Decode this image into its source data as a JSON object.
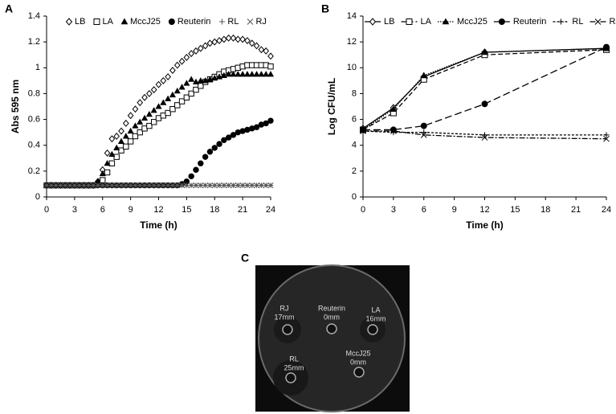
{
  "chart_data": [
    {
      "type": "scatter",
      "panel": "A",
      "x_label": "Time (h)",
      "y_label": "Abs 595 nm",
      "x": [
        0,
        0.5,
        1,
        1.5,
        2,
        2.5,
        3,
        3.5,
        4,
        4.5,
        5,
        5.5,
        6,
        6.5,
        7,
        7.5,
        8,
        8.5,
        9,
        9.5,
        10,
        10.5,
        11,
        11.5,
        12,
        12.5,
        13,
        13.5,
        14,
        14.5,
        15,
        15.5,
        16,
        16.5,
        17,
        17.5,
        18,
        18.5,
        19,
        19.5,
        20,
        20.5,
        21,
        21.5,
        22,
        22.5,
        23,
        23.5,
        24
      ],
      "xlim": [
        0,
        24
      ],
      "xticks": [
        0,
        3,
        6,
        9,
        12,
        15,
        18,
        21,
        24
      ],
      "ylim": [
        0,
        1.4
      ],
      "yticks": [
        0,
        0.2,
        0.4,
        0.6,
        0.8,
        1,
        1.2,
        1.4
      ],
      "series": [
        {
          "name": "LB",
          "marker": "diamond-open",
          "color": "#000",
          "values": [
            0.09,
            0.09,
            0.09,
            0.09,
            0.09,
            0.09,
            0.09,
            0.09,
            0.09,
            0.09,
            0.09,
            0.12,
            0.21,
            0.34,
            0.45,
            0.47,
            0.51,
            0.57,
            0.63,
            0.68,
            0.73,
            0.77,
            0.8,
            0.83,
            0.87,
            0.9,
            0.93,
            0.98,
            1.02,
            1.05,
            1.08,
            1.11,
            1.13,
            1.15,
            1.17,
            1.19,
            1.2,
            1.21,
            1.22,
            1.23,
            1.23,
            1.22,
            1.22,
            1.21,
            1.19,
            1.17,
            1.14,
            1.13,
            1.09
          ]
        },
        {
          "name": "LA",
          "marker": "square-open",
          "color": "#000",
          "values": [
            0.09,
            0.09,
            0.09,
            0.09,
            0.09,
            0.09,
            0.09,
            0.09,
            0.09,
            0.09,
            0.09,
            0.1,
            0.13,
            0.19,
            0.26,
            0.31,
            0.36,
            0.39,
            0.43,
            0.47,
            0.5,
            0.53,
            0.55,
            0.58,
            0.61,
            0.63,
            0.65,
            0.68,
            0.71,
            0.74,
            0.77,
            0.8,
            0.83,
            0.86,
            0.89,
            0.91,
            0.93,
            0.95,
            0.97,
            0.98,
            0.99,
            1.0,
            1.01,
            1.02,
            1.02,
            1.02,
            1.02,
            1.02,
            1.01
          ]
        },
        {
          "name": "MccJ25",
          "marker": "triangle",
          "color": "#000",
          "values": [
            0.09,
            0.09,
            0.09,
            0.09,
            0.09,
            0.09,
            0.09,
            0.09,
            0.09,
            0.09,
            0.09,
            0.12,
            0.18,
            0.26,
            0.33,
            0.38,
            0.43,
            0.47,
            0.51,
            0.55,
            0.58,
            0.61,
            0.64,
            0.67,
            0.7,
            0.73,
            0.76,
            0.79,
            0.82,
            0.85,
            0.88,
            0.91,
            0.89,
            0.9,
            0.9,
            0.91,
            0.92,
            0.93,
            0.94,
            0.95,
            0.95,
            0.95,
            0.95,
            0.95,
            0.95,
            0.95,
            0.95,
            0.95,
            0.95
          ]
        },
        {
          "name": "Reuterin",
          "marker": "circle",
          "color": "#000",
          "values": [
            0.09,
            0.09,
            0.09,
            0.09,
            0.09,
            0.09,
            0.09,
            0.09,
            0.09,
            0.09,
            0.09,
            0.09,
            0.09,
            0.09,
            0.09,
            0.09,
            0.09,
            0.09,
            0.09,
            0.09,
            0.09,
            0.09,
            0.09,
            0.09,
            0.09,
            0.09,
            0.09,
            0.09,
            0.09,
            0.1,
            0.12,
            0.16,
            0.21,
            0.26,
            0.31,
            0.35,
            0.38,
            0.41,
            0.44,
            0.46,
            0.48,
            0.5,
            0.51,
            0.52,
            0.53,
            0.54,
            0.56,
            0.57,
            0.59
          ]
        },
        {
          "name": "RL",
          "marker": "plus",
          "color": "#555",
          "values": [
            0.09,
            0.09,
            0.09,
            0.09,
            0.09,
            0.09,
            0.09,
            0.09,
            0.09,
            0.09,
            0.09,
            0.09,
            0.09,
            0.09,
            0.09,
            0.09,
            0.09,
            0.09,
            0.09,
            0.09,
            0.09,
            0.09,
            0.09,
            0.09,
            0.09,
            0.09,
            0.09,
            0.09,
            0.09,
            0.09,
            0.09,
            0.09,
            0.09,
            0.09,
            0.09,
            0.09,
            0.09,
            0.09,
            0.09,
            0.09,
            0.09,
            0.09,
            0.09,
            0.09,
            0.09,
            0.09,
            0.09,
            0.09,
            0.09
          ]
        },
        {
          "name": "RJ",
          "marker": "cross",
          "color": "#555",
          "values": [
            0.09,
            0.09,
            0.09,
            0.09,
            0.09,
            0.09,
            0.09,
            0.09,
            0.09,
            0.09,
            0.09,
            0.09,
            0.09,
            0.09,
            0.09,
            0.09,
            0.09,
            0.09,
            0.09,
            0.09,
            0.09,
            0.09,
            0.09,
            0.09,
            0.09,
            0.09,
            0.09,
            0.09,
            0.09,
            0.09,
            0.09,
            0.09,
            0.09,
            0.09,
            0.09,
            0.09,
            0.09,
            0.09,
            0.09,
            0.09,
            0.09,
            0.09,
            0.09,
            0.09,
            0.09,
            0.09,
            0.09,
            0.09,
            0.09
          ]
        }
      ]
    },
    {
      "type": "line",
      "panel": "B",
      "x_label": "Time (h)",
      "y_label": "Log CFU/mL",
      "x": [
        0,
        3,
        6,
        12,
        24
      ],
      "xlim": [
        0,
        24
      ],
      "xticks": [
        0,
        3,
        6,
        9,
        12,
        15,
        18,
        21,
        24
      ],
      "ylim": [
        0,
        14
      ],
      "yticks": [
        0,
        2,
        4,
        6,
        8,
        10,
        12,
        14
      ],
      "series": [
        {
          "name": "LB",
          "marker": "diamond-open",
          "dash": "none",
          "color": "#000",
          "values": [
            5.3,
            6.9,
            9.3,
            11.2,
            11.5
          ]
        },
        {
          "name": "LA",
          "marker": "square-open",
          "dash": "6 3",
          "color": "#000",
          "values": [
            5.2,
            6.5,
            9.1,
            11.0,
            11.4
          ]
        },
        {
          "name": "MccJ25",
          "marker": "triangle",
          "dash": "1.5 1.5",
          "color": "#000",
          "values": [
            5.2,
            6.8,
            9.4,
            11.2,
            11.5
          ]
        },
        {
          "name": "Reuterin",
          "marker": "circle",
          "dash": "9 4",
          "color": "#000",
          "values": [
            5.2,
            5.2,
            5.5,
            7.2,
            11.6
          ]
        },
        {
          "name": "RL",
          "marker": "plus",
          "dash": "3 2",
          "color": "#000",
          "values": [
            5.1,
            5.0,
            5.0,
            4.8,
            4.8
          ]
        },
        {
          "name": "RJ",
          "marker": "cross",
          "dash": "7 2 2 2",
          "color": "#000",
          "values": [
            5.1,
            5.1,
            4.8,
            4.6,
            4.5
          ]
        }
      ]
    }
  ],
  "image": {
    "panel": "C",
    "wells": [
      {
        "name": "Reuterin",
        "zone": "0mm"
      },
      {
        "name": "RJ",
        "zone": "17mm"
      },
      {
        "name": "LA",
        "zone": "16mm"
      },
      {
        "name": "RL",
        "zone": "25mm"
      },
      {
        "name": "MccJ25",
        "zone": "0mm"
      }
    ]
  }
}
